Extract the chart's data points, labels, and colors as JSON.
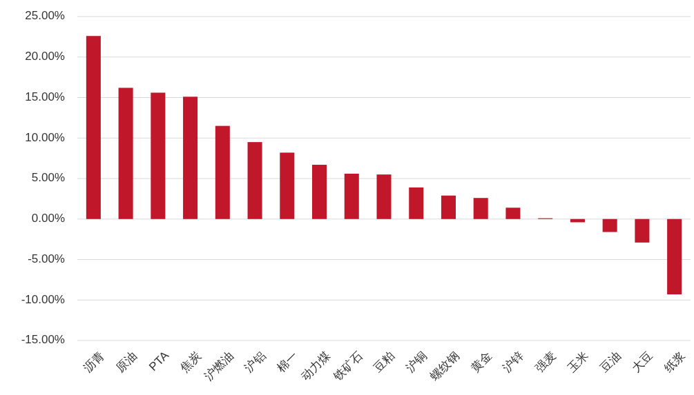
{
  "chart_data": {
    "type": "bar",
    "categories": [
      "沥青",
      "原油",
      "PTA",
      "焦炭",
      "沪燃油",
      "沪铝",
      "棉一",
      "动力煤",
      "铁矿石",
      "豆粕",
      "沪铜",
      "螺纹钢",
      "黄金",
      "沪锌",
      "强麦",
      "玉米",
      "豆油",
      "大豆",
      "纸浆"
    ],
    "values": [
      22.6,
      16.2,
      15.6,
      15.1,
      11.5,
      9.5,
      8.2,
      6.7,
      5.6,
      5.5,
      3.9,
      2.9,
      2.6,
      1.4,
      0.1,
      -0.4,
      -1.6,
      -2.9,
      -9.3
    ],
    "color": "#c0182a",
    "ylim": [
      -15,
      25
    ],
    "yticks": [
      {
        "value": -15,
        "label": "-15.00%"
      },
      {
        "value": -10,
        "label": "-10.00%"
      },
      {
        "value": -5,
        "label": "-5.00%"
      },
      {
        "value": 0,
        "label": "0.00%"
      },
      {
        "value": 5,
        "label": "5.00%"
      },
      {
        "value": 10,
        "label": "10.00%"
      },
      {
        "value": 15,
        "label": "15.00%"
      },
      {
        "value": 20,
        "label": "20.00%"
      },
      {
        "value": 25,
        "label": "25.00%"
      }
    ],
    "grid": "y"
  }
}
